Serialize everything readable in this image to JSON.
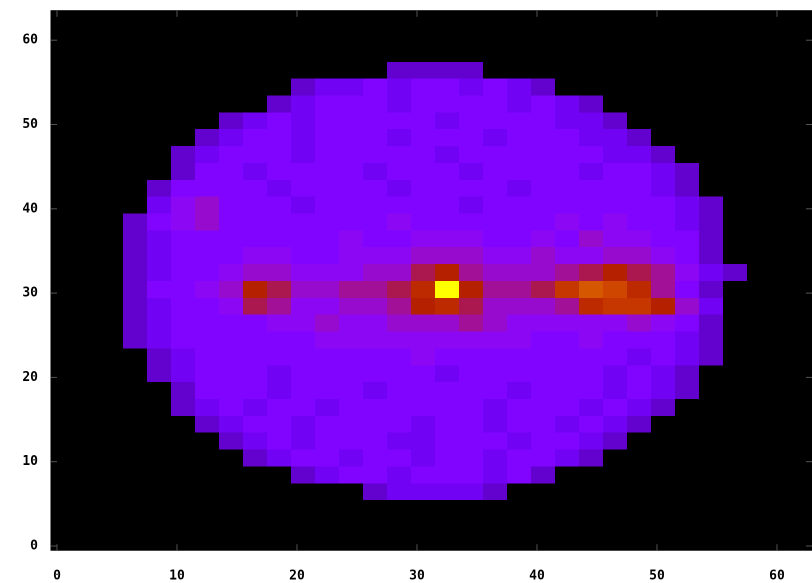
{
  "chart_data": {
    "type": "heatmap",
    "palette": "gnuplot",
    "x": [
      0.5,
      2.5,
      4.5,
      6.5,
      8.5,
      10.5,
      12.5,
      14.5,
      16.5,
      18.5,
      20.5,
      22.5,
      24.5,
      26.5,
      28.5,
      30.5,
      32.5,
      34.5,
      36.5,
      38.5,
      40.5,
      42.5,
      44.5,
      46.5,
      48.5,
      50.5,
      52.5,
      54.5,
      56.5,
      58.5,
      60.5,
      62.5
    ],
    "y": [
      0.5,
      2.5,
      4.5,
      6.5,
      8.5,
      10.5,
      12.5,
      14.5,
      16.5,
      18.5,
      20.5,
      22.5,
      24.5,
      26.5,
      28.5,
      30.5,
      32.5,
      34.5,
      36.5,
      38.5,
      40.5,
      42.5,
      44.5,
      46.5,
      48.5,
      50.5,
      52.5,
      54.5,
      56.5,
      58.5,
      60.5,
      62.5
    ],
    "z": [
      [
        0,
        0,
        0,
        0,
        0,
        0,
        0,
        0,
        0,
        0,
        0,
        0,
        0,
        0,
        0,
        0,
        0,
        0,
        0,
        0,
        0,
        0,
        0,
        0,
        0,
        0,
        0,
        0,
        0,
        0,
        0,
        0
      ],
      [
        0,
        0,
        0,
        0,
        0,
        0,
        0,
        0,
        0,
        0,
        0,
        0,
        0,
        0,
        0,
        0,
        0,
        0,
        0,
        0,
        0,
        0,
        0,
        0,
        0,
        0,
        0,
        0,
        0,
        0,
        0,
        0
      ],
      [
        0,
        0,
        0,
        0,
        0,
        0,
        0,
        0,
        0,
        0,
        0,
        0,
        0,
        0,
        0,
        0,
        0,
        0,
        0,
        0,
        0,
        0,
        0,
        0,
        0,
        0,
        0,
        0,
        0,
        0,
        0,
        0
      ],
      [
        0,
        0,
        0,
        0,
        0,
        0,
        0,
        0,
        0,
        0,
        0,
        0,
        0,
        3,
        4,
        4,
        4,
        4,
        3,
        0,
        0,
        0,
        0,
        0,
        0,
        0,
        0,
        0,
        0,
        0,
        0,
        0
      ],
      [
        0,
        0,
        0,
        0,
        0,
        0,
        0,
        0,
        0,
        0,
        3,
        4,
        5,
        5,
        4,
        5,
        5,
        5,
        4,
        5,
        3,
        0,
        0,
        0,
        0,
        0,
        0,
        0,
        0,
        0,
        0,
        0
      ],
      [
        0,
        0,
        0,
        0,
        0,
        0,
        0,
        0,
        3,
        4,
        5,
        5,
        4,
        5,
        5,
        4,
        5,
        5,
        4,
        5,
        5,
        4,
        3,
        0,
        0,
        0,
        0,
        0,
        0,
        0,
        0,
        0
      ],
      [
        0,
        0,
        0,
        0,
        0,
        0,
        0,
        3,
        4,
        5,
        4,
        5,
        5,
        5,
        4,
        4,
        5,
        5,
        5,
        4,
        5,
        5,
        4,
        3,
        0,
        0,
        0,
        0,
        0,
        0,
        0,
        0
      ],
      [
        0,
        0,
        0,
        0,
        0,
        0,
        3,
        4,
        5,
        5,
        4,
        5,
        5,
        5,
        5,
        4,
        5,
        5,
        4,
        5,
        5,
        4,
        5,
        4,
        3,
        0,
        0,
        0,
        0,
        0,
        0,
        0
      ],
      [
        0,
        0,
        0,
        0,
        0,
        3,
        4,
        5,
        4,
        5,
        5,
        4,
        5,
        5,
        5,
        5,
        5,
        5,
        4,
        5,
        5,
        5,
        4,
        5,
        4,
        3,
        0,
        0,
        0,
        0,
        0,
        0
      ],
      [
        0,
        0,
        0,
        0,
        0,
        3,
        5,
        5,
        5,
        4,
        5,
        5,
        5,
        4,
        5,
        5,
        5,
        5,
        5,
        4,
        5,
        5,
        5,
        4,
        5,
        4,
        3,
        0,
        0,
        0,
        0,
        0
      ],
      [
        0,
        0,
        0,
        0,
        3,
        4,
        5,
        5,
        5,
        4,
        5,
        5,
        5,
        5,
        5,
        5,
        4,
        5,
        5,
        5,
        5,
        5,
        5,
        4,
        5,
        4,
        3,
        0,
        0,
        0,
        0,
        0
      ],
      [
        0,
        0,
        0,
        0,
        3,
        4,
        5,
        5,
        5,
        5,
        5,
        5,
        5,
        5,
        5,
        6,
        5,
        5,
        5,
        5,
        5,
        5,
        5,
        5,
        4,
        5,
        4,
        3,
        0,
        0,
        0,
        0
      ],
      [
        0,
        0,
        0,
        3,
        4,
        5,
        5,
        5,
        5,
        5,
        5,
        6,
        6,
        6,
        6,
        6,
        6,
        6,
        6,
        6,
        5,
        5,
        6,
        5,
        5,
        5,
        4,
        3,
        0,
        0,
        0,
        0
      ],
      [
        0,
        0,
        0,
        3,
        4,
        5,
        5,
        5,
        5,
        6,
        6,
        7,
        6,
        6,
        7,
        7,
        7,
        8,
        7,
        6,
        6,
        6,
        6,
        6,
        7,
        6,
        5,
        3,
        0,
        0,
        0,
        0
      ],
      [
        0,
        0,
        0,
        3,
        4,
        5,
        5,
        6,
        9,
        8,
        6,
        6,
        7,
        7,
        8,
        10,
        11,
        9,
        7,
        7,
        7,
        8,
        11,
        12,
        12,
        10,
        7,
        4,
        0,
        0,
        0,
        0
      ],
      [
        0,
        0,
        0,
        3,
        5,
        5,
        6,
        7,
        10,
        9,
        7,
        7,
        8,
        8,
        9,
        11,
        20,
        10,
        8,
        8,
        9,
        12,
        14,
        13,
        11,
        8,
        5,
        3,
        0,
        0,
        0,
        0
      ],
      [
        0,
        0,
        0,
        3,
        4,
        5,
        5,
        6,
        7,
        7,
        6,
        6,
        6,
        7,
        7,
        9,
        10,
        8,
        7,
        7,
        7,
        8,
        9,
        10,
        9,
        8,
        6,
        4,
        3,
        0,
        0,
        0
      ],
      [
        0,
        0,
        0,
        3,
        4,
        5,
        5,
        5,
        6,
        6,
        5,
        5,
        6,
        6,
        6,
        7,
        7,
        7,
        6,
        6,
        7,
        6,
        6,
        7,
        7,
        6,
        5,
        3,
        0,
        0,
        0,
        0
      ],
      [
        0,
        0,
        0,
        3,
        4,
        5,
        5,
        5,
        5,
        5,
        5,
        5,
        6,
        5,
        5,
        6,
        6,
        6,
        5,
        5,
        6,
        5,
        7,
        6,
        6,
        5,
        5,
        3,
        0,
        0,
        0,
        0
      ],
      [
        0,
        0,
        0,
        3,
        5,
        6,
        7,
        5,
        5,
        5,
        5,
        5,
        5,
        5,
        6,
        5,
        5,
        5,
        5,
        5,
        5,
        6,
        5,
        6,
        5,
        5,
        4,
        3,
        0,
        0,
        0,
        0
      ],
      [
        0,
        0,
        0,
        0,
        4,
        6,
        7,
        5,
        5,
        5,
        4,
        5,
        5,
        5,
        5,
        5,
        5,
        4,
        5,
        5,
        5,
        5,
        5,
        5,
        5,
        5,
        4,
        3,
        0,
        0,
        0,
        0
      ],
      [
        0,
        0,
        0,
        0,
        3,
        5,
        5,
        5,
        5,
        4,
        5,
        5,
        5,
        5,
        4,
        5,
        5,
        5,
        5,
        4,
        5,
        5,
        5,
        5,
        5,
        4,
        3,
        0,
        0,
        0,
        0,
        0
      ],
      [
        0,
        0,
        0,
        0,
        0,
        3,
        5,
        5,
        4,
        5,
        5,
        5,
        5,
        4,
        5,
        5,
        5,
        4,
        5,
        5,
        5,
        5,
        4,
        5,
        5,
        4,
        3,
        0,
        0,
        0,
        0,
        0
      ],
      [
        0,
        0,
        0,
        0,
        0,
        3,
        4,
        5,
        5,
        5,
        4,
        5,
        5,
        5,
        5,
        5,
        4,
        5,
        5,
        5,
        5,
        5,
        5,
        4,
        4,
        3,
        0,
        0,
        0,
        0,
        0,
        0
      ],
      [
        0,
        0,
        0,
        0,
        0,
        0,
        3,
        4,
        5,
        5,
        4,
        5,
        5,
        5,
        4,
        5,
        5,
        5,
        4,
        5,
        5,
        5,
        4,
        4,
        3,
        0,
        0,
        0,
        0,
        0,
        0,
        0
      ],
      [
        0,
        0,
        0,
        0,
        0,
        0,
        0,
        3,
        4,
        5,
        4,
        5,
        5,
        5,
        5,
        5,
        4,
        5,
        5,
        5,
        5,
        4,
        4,
        3,
        0,
        0,
        0,
        0,
        0,
        0,
        0,
        0
      ],
      [
        0,
        0,
        0,
        0,
        0,
        0,
        0,
        0,
        0,
        3,
        4,
        5,
        5,
        5,
        4,
        5,
        5,
        5,
        5,
        4,
        5,
        4,
        3,
        0,
        0,
        0,
        0,
        0,
        0,
        0,
        0,
        0
      ],
      [
        0,
        0,
        0,
        0,
        0,
        0,
        0,
        0,
        0,
        0,
        3,
        4,
        4,
        5,
        4,
        5,
        5,
        4,
        5,
        4,
        3,
        0,
        0,
        0,
        0,
        0,
        0,
        0,
        0,
        0,
        0,
        0
      ],
      [
        0,
        0,
        0,
        0,
        0,
        0,
        0,
        0,
        0,
        0,
        0,
        0,
        0,
        0,
        3,
        3,
        3,
        3,
        0,
        0,
        0,
        0,
        0,
        0,
        0,
        0,
        0,
        0,
        0,
        0,
        0,
        0
      ],
      [
        0,
        0,
        0,
        0,
        0,
        0,
        0,
        0,
        0,
        0,
        0,
        0,
        0,
        0,
        0,
        0,
        0,
        0,
        0,
        0,
        0,
        0,
        0,
        0,
        0,
        0,
        0,
        0,
        0,
        0,
        0,
        0
      ],
      [
        0,
        0,
        0,
        0,
        0,
        0,
        0,
        0,
        0,
        0,
        0,
        0,
        0,
        0,
        0,
        0,
        0,
        0,
        0,
        0,
        0,
        0,
        0,
        0,
        0,
        0,
        0,
        0,
        0,
        0,
        0,
        0
      ],
      [
        0,
        0,
        0,
        0,
        0,
        0,
        0,
        0,
        0,
        0,
        0,
        0,
        0,
        0,
        0,
        0,
        0,
        0,
        0,
        0,
        0,
        0,
        0,
        0,
        0,
        0,
        0,
        0,
        0,
        0,
        0,
        0
      ]
    ],
    "zlim": [
      0,
      20
    ],
    "xlim": [
      -0.5,
      63.5
    ],
    "ylim": [
      -0.5,
      63.5
    ],
    "xticks": [
      0,
      10,
      20,
      30,
      40,
      50,
      60
    ],
    "yticks": [
      0,
      10,
      20,
      30,
      40,
      50,
      60
    ]
  }
}
